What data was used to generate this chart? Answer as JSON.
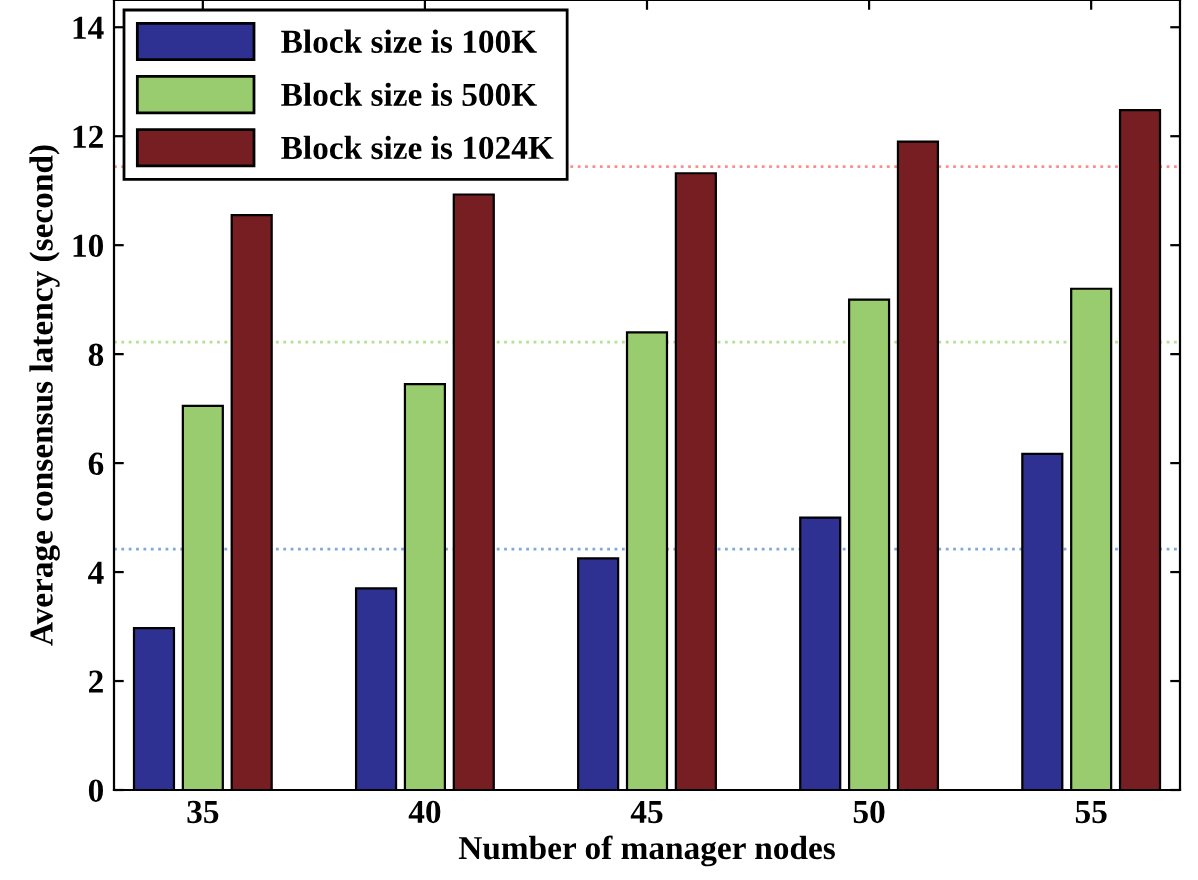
{
  "chart_data": {
    "type": "bar",
    "xlabel": "Number of manager nodes",
    "ylabel": "Average consensus latency (second)",
    "categories": [
      "35",
      "40",
      "45",
      "50",
      "55"
    ],
    "series": [
      {
        "name": "Block size is 100K",
        "color": "#2e3192",
        "values": [
          2.97,
          3.7,
          4.25,
          5.0,
          6.17
        ]
      },
      {
        "name": "Block size is 500K",
        "color": "#98cc6e",
        "values": [
          7.05,
          7.45,
          8.4,
          9.0,
          9.2
        ]
      },
      {
        "name": "Block size is 1024K",
        "color": "#761e22",
        "values": [
          10.55,
          10.93,
          11.32,
          11.9,
          12.48
        ]
      }
    ],
    "ylim": [
      0,
      14.5
    ],
    "yticks": [
      0,
      2,
      4,
      6,
      8,
      10,
      12,
      14
    ],
    "grid": false,
    "legend": "top left",
    "ref_lines": [
      {
        "axis": "y",
        "value": 4.42,
        "color": "#7fa8dc",
        "line_style": "dotted"
      },
      {
        "axis": "y",
        "value": 8.22,
        "color": "#b5e08e",
        "line_style": "dotted"
      },
      {
        "axis": "y",
        "value": 11.44,
        "color": "#ff8c8c",
        "line_style": "dotted"
      }
    ]
  }
}
